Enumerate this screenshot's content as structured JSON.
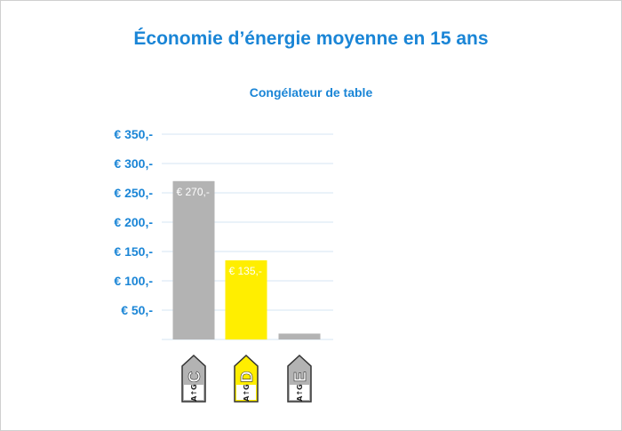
{
  "title": "Économie d’énergie moyenne en 15 ans",
  "subtitle": "Congélateur de table",
  "chart_data": {
    "type": "bar",
    "categories": [
      "C",
      "D",
      "E"
    ],
    "values": [
      270,
      135,
      10
    ],
    "value_labels": [
      "€ 270,-",
      "€ 135,-",
      ""
    ],
    "category_sublabel": "A↑G",
    "y_tick_values": [
      50,
      100,
      150,
      200,
      250,
      300,
      350
    ],
    "y_tick_labels": [
      "€ 50,-",
      "€ 100,-",
      "€ 150,-",
      "€ 200,-",
      "€ 250,-",
      "€ 300,-",
      "€ 350,-"
    ],
    "ylim": [
      0,
      350
    ],
    "grid": true,
    "colors": {
      "bars": [
        "#b3b3b3",
        "#ffee00",
        "#b3b3b3"
      ],
      "label_fill": [
        "#b3b3b3",
        "#ffee00",
        "#b3b3b3"
      ],
      "text": "#1a85d6",
      "grid": "#d6e6f3"
    }
  }
}
